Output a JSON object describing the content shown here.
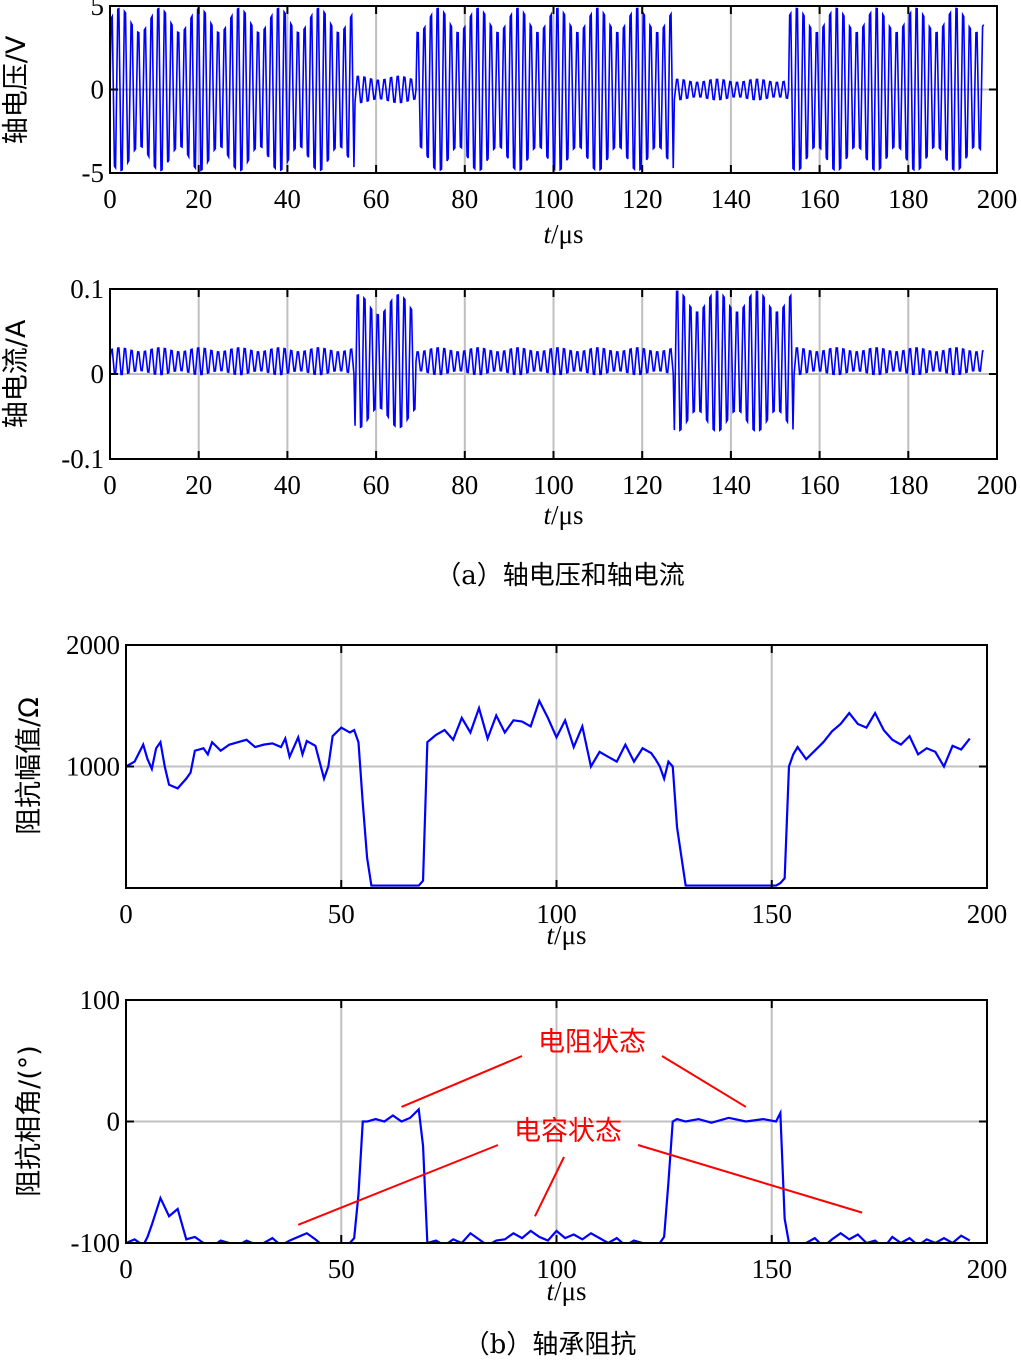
{
  "captions": {
    "a": "（a）轴电压和轴电流",
    "b": "（b）轴承阻抗"
  },
  "chart_data": [
    {
      "type": "line",
      "id": "voltage",
      "ylabel": "轴电压/V",
      "xlabel": "t/μs",
      "xlabel_italic": "t",
      "xlabel_unit": "/μs",
      "xlim": [
        0,
        200
      ],
      "ylim": [
        -5,
        5
      ],
      "xticks": [
        0,
        20,
        40,
        60,
        80,
        100,
        120,
        140,
        160,
        180,
        200
      ],
      "yticks": [
        -5,
        0,
        5
      ],
      "grid": true,
      "color": "#0000ff",
      "oscillation_period_us": 1.5,
      "segments": [
        {
          "x": [
            0,
            55
          ],
          "amplitude": 5.6
        },
        {
          "x": [
            55,
            69
          ],
          "amplitude": 0.9
        },
        {
          "x": [
            69,
            127
          ],
          "amplitude": 5.6
        },
        {
          "x": [
            127,
            153
          ],
          "amplitude": 0.7
        },
        {
          "x": [
            153,
            197
          ],
          "amplitude": 5.6
        }
      ]
    },
    {
      "type": "line",
      "id": "current",
      "ylabel": "轴电流/A",
      "xlabel": "t/μs",
      "xlabel_italic": "t",
      "xlabel_unit": "/μs",
      "xlim": [
        0,
        200
      ],
      "ylim": [
        -0.1,
        0.1
      ],
      "xticks": [
        0,
        20,
        40,
        60,
        80,
        100,
        120,
        140,
        160,
        180,
        200
      ],
      "yticks": [
        -0.1,
        0,
        0.1
      ],
      "grid": true,
      "color": "#0000ff",
      "oscillation_period_us": 1.5,
      "segments": [
        {
          "x": [
            0,
            55
          ],
          "center": 0.015,
          "amplitude": 0.018
        },
        {
          "x": [
            55,
            69
          ],
          "center": 0.015,
          "amplitude": 0.09
        },
        {
          "x": [
            69,
            127
          ],
          "center": 0.015,
          "amplitude": 0.018
        },
        {
          "x": [
            127,
            154
          ],
          "center": 0.015,
          "amplitude": 0.095
        },
        {
          "x": [
            154,
            197
          ],
          "center": 0.015,
          "amplitude": 0.018
        }
      ]
    },
    {
      "type": "line",
      "id": "impedance-magnitude",
      "ylabel": "阻抗幅值/Ω",
      "xlabel": "t/μs",
      "xlabel_italic": "t",
      "xlabel_unit": "/μs",
      "xlim": [
        0,
        200
      ],
      "ylim": [
        0,
        2000
      ],
      "xticks": [
        0,
        50,
        100,
        150,
        200
      ],
      "yticks": [
        1000,
        2000
      ],
      "grid": true,
      "color": "#0000ff",
      "x": [
        0,
        2,
        4,
        5,
        6,
        7,
        8,
        9,
        10,
        12,
        14,
        15,
        16,
        18,
        19,
        20,
        22,
        24,
        26,
        28,
        30,
        32,
        34,
        36,
        37,
        38,
        40,
        41,
        42,
        44,
        46,
        47,
        48,
        50,
        51,
        52,
        53,
        54,
        55,
        56,
        57,
        58,
        60,
        62,
        64,
        66,
        68,
        69,
        70,
        72,
        74,
        76,
        78,
        80,
        82,
        84,
        86,
        88,
        90,
        92,
        94,
        96,
        98,
        100,
        102,
        104,
        106,
        108,
        110,
        112,
        114,
        116,
        118,
        120,
        122,
        123,
        124,
        125,
        126,
        127,
        128,
        130,
        135,
        140,
        145,
        150,
        151,
        152,
        153,
        154,
        155,
        156,
        158,
        160,
        162,
        164,
        166,
        168,
        170,
        172,
        174,
        176,
        178,
        180,
        182,
        184,
        186,
        188,
        190,
        192,
        194,
        196
      ],
      "values": [
        1000,
        1040,
        1180,
        1060,
        980,
        1150,
        1200,
        1000,
        850,
        820,
        900,
        950,
        1130,
        1150,
        1100,
        1200,
        1130,
        1180,
        1200,
        1220,
        1160,
        1180,
        1190,
        1160,
        1230,
        1080,
        1240,
        1100,
        1210,
        1170,
        900,
        1000,
        1250,
        1320,
        1300,
        1280,
        1300,
        1200,
        700,
        250,
        20,
        20,
        20,
        20,
        20,
        20,
        20,
        60,
        1200,
        1260,
        1300,
        1220,
        1400,
        1280,
        1480,
        1230,
        1420,
        1280,
        1380,
        1370,
        1330,
        1540,
        1400,
        1240,
        1380,
        1160,
        1330,
        1000,
        1120,
        1080,
        1040,
        1180,
        1040,
        1150,
        1110,
        1060,
        1000,
        900,
        1040,
        1000,
        500,
        20,
        20,
        20,
        20,
        20,
        20,
        40,
        80,
        1000,
        1100,
        1160,
        1060,
        1130,
        1200,
        1290,
        1350,
        1440,
        1350,
        1320,
        1440,
        1300,
        1220,
        1180,
        1250,
        1100,
        1150,
        1120,
        1000,
        1170,
        1140,
        1230
      ]
    },
    {
      "type": "line",
      "id": "impedance-phase",
      "ylabel": "阻抗相角/(°)",
      "xlabel": "t/μs",
      "xlabel_italic": "t",
      "xlabel_unit": "/μs",
      "xlim": [
        0,
        200
      ],
      "ylim": [
        -100,
        100
      ],
      "xticks": [
        0,
        50,
        100,
        150,
        200
      ],
      "yticks": [
        -100,
        0,
        100
      ],
      "grid": true,
      "color": "#0000ff",
      "x": [
        0,
        2,
        4,
        5,
        6,
        8,
        10,
        12,
        14,
        16,
        18,
        20,
        22,
        24,
        26,
        28,
        30,
        32,
        34,
        36,
        38,
        40,
        42,
        44,
        46,
        48,
        50,
        52,
        53,
        54,
        55,
        56,
        58,
        60,
        62,
        64,
        66,
        68,
        69,
        70,
        72,
        74,
        76,
        78,
        80,
        82,
        84,
        86,
        88,
        90,
        92,
        94,
        96,
        98,
        100,
        102,
        104,
        106,
        108,
        110,
        112,
        114,
        116,
        118,
        120,
        122,
        124,
        125,
        126,
        127,
        128,
        130,
        133,
        136,
        140,
        144,
        148,
        151,
        152,
        153,
        154,
        155,
        156,
        158,
        160,
        162,
        164,
        166,
        168,
        170,
        172,
        174,
        176,
        178,
        180,
        182,
        184,
        186,
        188,
        190,
        192,
        194,
        196
      ],
      "values": [
        -100,
        -97,
        -102,
        -95,
        -85,
        -63,
        -78,
        -72,
        -97,
        -95,
        -100,
        -103,
        -98,
        -100,
        -102,
        -98,
        -101,
        -100,
        -96,
        -102,
        -98,
        -95,
        -92,
        -97,
        -103,
        -100,
        -102,
        -100,
        -96,
        -60,
        0,
        0,
        2,
        0,
        5,
        0,
        3,
        10,
        -20,
        -100,
        -98,
        -102,
        -97,
        -100,
        -92,
        -97,
        -102,
        -98,
        -97,
        -92,
        -96,
        -90,
        -95,
        -98,
        -90,
        -96,
        -93,
        -97,
        -92,
        -96,
        -100,
        -96,
        -102,
        -98,
        -100,
        -103,
        -100,
        -95,
        -50,
        0,
        2,
        0,
        2,
        -1,
        3,
        0,
        2,
        0,
        7,
        -80,
        -100,
        -103,
        -102,
        -100,
        -96,
        -103,
        -97,
        -92,
        -97,
        -93,
        -100,
        -98,
        -104,
        -95,
        -100,
        -96,
        -102,
        -97,
        -100,
        -96,
        -100,
        -94,
        -98
      ],
      "annotations": [
        {
          "text": "电阻状态",
          "targets": [
            [
              64,
              12
            ],
            [
              144,
              12
            ]
          ]
        },
        {
          "text": "电容状态",
          "targets": [
            [
              40,
              -85
            ],
            [
              95,
              -78
            ],
            [
              171,
              -75
            ]
          ]
        }
      ]
    }
  ]
}
